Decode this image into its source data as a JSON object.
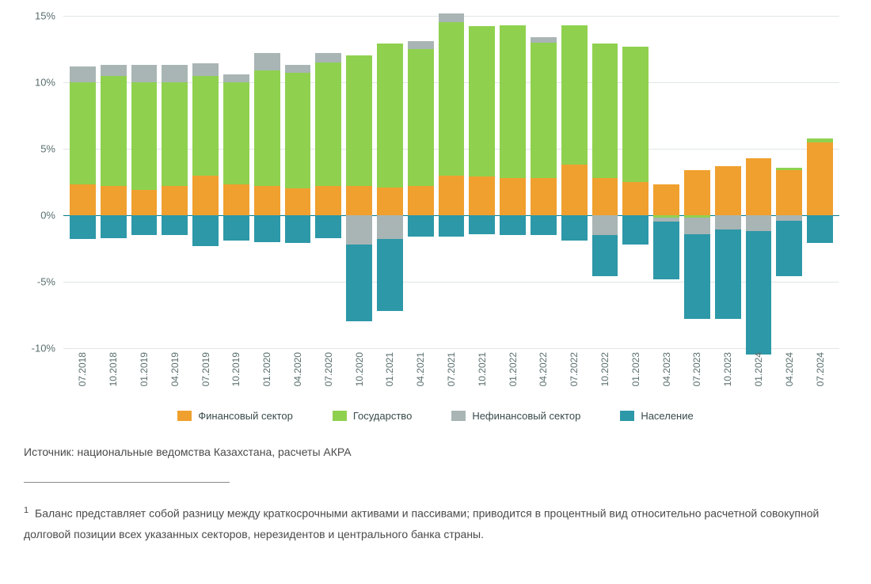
{
  "chart": {
    "type": "stacked-bar",
    "background_color": "#ffffff",
    "grid_color": "#e0e6e6",
    "axis_color": "#007a8a",
    "text_color": "#5a6e6e",
    "ymin": -10,
    "ymax": 15,
    "ytick_step": 5,
    "y_ticks": [
      "15%",
      "10%",
      "5%",
      "0%",
      "-5%",
      "-10%"
    ],
    "y_tick_values": [
      15,
      10,
      5,
      0,
      -5,
      -10
    ],
    "categories": [
      "07.2018",
      "10.2018",
      "01.2019",
      "04.2019",
      "07.2019",
      "10.2019",
      "01.2020",
      "04.2020",
      "07.2020",
      "10.2020",
      "01.2021",
      "04.2021",
      "07.2021",
      "10.2021",
      "01.2022",
      "04.2022",
      "07.2022",
      "10.2022",
      "01.2023",
      "04.2023",
      "07.2023",
      "10.2023",
      "01.2024",
      "04.2024",
      "07.2024"
    ],
    "series": [
      {
        "key": "fin",
        "label": "Финансовый сектор",
        "color": "#f0a02e"
      },
      {
        "key": "gov",
        "label": "Государство",
        "color": "#8fd14f"
      },
      {
        "key": "nonfin",
        "label": "Нефинансовый сектор",
        "color": "#a9b5b5"
      },
      {
        "key": "pop",
        "label": "Население",
        "color": "#2d98a8"
      }
    ],
    "data": [
      {
        "fin": 2.3,
        "gov": 7.7,
        "nonfin": 1.2,
        "pop": -1.8
      },
      {
        "fin": 2.2,
        "gov": 8.3,
        "nonfin": 0.8,
        "pop": -1.7
      },
      {
        "fin": 1.9,
        "gov": 8.1,
        "nonfin": 1.3,
        "pop": -1.5
      },
      {
        "fin": 2.2,
        "gov": 7.8,
        "nonfin": 1.3,
        "pop": -1.5
      },
      {
        "fin": 3.0,
        "gov": 7.5,
        "nonfin": 0.9,
        "pop": -2.3
      },
      {
        "fin": 2.3,
        "gov": 7.7,
        "nonfin": 0.6,
        "pop": -1.9
      },
      {
        "fin": 2.2,
        "gov": 8.7,
        "nonfin": 1.3,
        "pop": -2.0
      },
      {
        "fin": 2.0,
        "gov": 8.7,
        "nonfin": 0.6,
        "pop": -2.1
      },
      {
        "fin": 2.2,
        "gov": 9.3,
        "nonfin": 0.7,
        "pop": -1.7
      },
      {
        "fin": 2.2,
        "gov": 9.8,
        "nonfin": 0.0,
        "pop": -5.8,
        "nonfin_neg": -2.2
      },
      {
        "fin": 2.1,
        "gov": 10.8,
        "nonfin": 0.0,
        "pop": -5.4,
        "nonfin_neg": -1.8
      },
      {
        "fin": 2.2,
        "gov": 10.3,
        "nonfin": 0.6,
        "pop": -1.6
      },
      {
        "fin": 3.0,
        "gov": 11.5,
        "nonfin": 0.7,
        "pop": -1.6
      },
      {
        "fin": 2.9,
        "gov": 11.3,
        "nonfin": 0.0,
        "pop": -1.4
      },
      {
        "fin": 2.8,
        "gov": 11.5,
        "nonfin": 0.0,
        "pop": -1.5
      },
      {
        "fin": 2.8,
        "gov": 10.2,
        "nonfin": 0.4,
        "pop": -1.5
      },
      {
        "fin": 3.8,
        "gov": 10.5,
        "nonfin": 0.0,
        "pop": -1.9
      },
      {
        "fin": 2.8,
        "gov": 10.1,
        "nonfin": 0.0,
        "pop": -3.1,
        "nonfin_neg": -1.5
      },
      {
        "fin": 2.5,
        "gov": 10.2,
        "nonfin": 0.0,
        "pop": -2.2
      },
      {
        "fin": 2.3,
        "gov": 0.0,
        "nonfin": 0.0,
        "pop": -4.3,
        "gov_neg": -0.2,
        "nonfin_neg": -0.3
      },
      {
        "fin": 3.4,
        "gov": 0.0,
        "nonfin": 0.0,
        "pop": -6.4,
        "gov_neg": -0.2,
        "nonfin_neg": -1.2
      },
      {
        "fin": 3.7,
        "gov": 0.0,
        "nonfin": 0.0,
        "pop": -6.7,
        "nonfin_neg": -1.1
      },
      {
        "fin": 4.3,
        "gov": 0.0,
        "nonfin": 0.0,
        "pop": -9.3,
        "nonfin_neg": -1.2
      },
      {
        "fin": 3.4,
        "gov": 0.2,
        "nonfin": 0.0,
        "pop": -4.2,
        "nonfin_neg": -0.4
      },
      {
        "fin": 5.5,
        "gov": 0.3,
        "nonfin": 0.0,
        "pop": -2.1
      }
    ],
    "bar_width_ratio": 0.75,
    "legend_fontsize": 13,
    "axis_fontsize": 13
  },
  "source_text": "Источник: национальные ведомства Казахстана, расчеты АКРА",
  "footnote_marker": "1",
  "footnote_text": "Баланс представляет собой разницу между краткосрочными активами и пассивами; приводится в процентный вид относительно расчетной совокупной долговой позиции всех указанных секторов, нерезидентов и центрального банка страны."
}
